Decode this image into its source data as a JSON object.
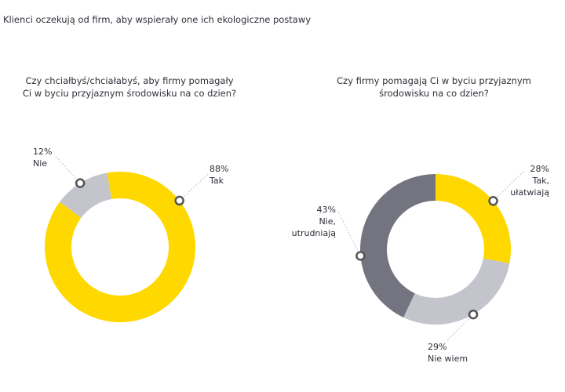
{
  "title": "Klienci oczekują od firm, aby wspierały one ich ekologiczne postawy",
  "chart_data": [
    {
      "type": "donut",
      "title": "Czy chciałbyś/chciałabyś, aby firmy pomagały\nCi w byciu przyjaznym środowisku na co dzien?",
      "categories": [
        "Tak",
        "Nie"
      ],
      "values": [
        88,
        12
      ],
      "value_labels": [
        "88%",
        "12%"
      ],
      "colors": [
        "#ffd800",
        "#c4c4cd"
      ]
    },
    {
      "type": "donut",
      "title": "Czy firmy pomagają Ci w byciu przyjaznym\nśrodowisku na co dzien?",
      "categories": [
        "Tak,\nułatwiają",
        "Nie wiem",
        "Nie,\nutrudniają"
      ],
      "values": [
        28,
        29,
        43
      ],
      "value_labels": [
        "28%",
        "29%",
        "43%"
      ],
      "colors": [
        "#ffd800",
        "#c4c4cd",
        "#747480"
      ]
    }
  ]
}
